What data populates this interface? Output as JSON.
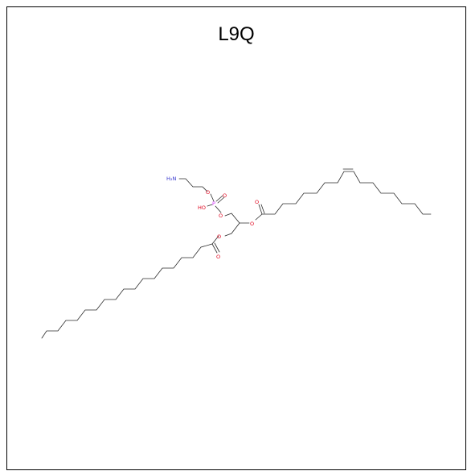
{
  "title": "L9Q",
  "atoms": {
    "amine": "H₂N",
    "phosphorus": "P",
    "hydroxyl": "HO",
    "oxygen": "O"
  },
  "colors": {
    "nitrogen": "#3333cc",
    "oxygen": "#e0001b",
    "phosphorus": "#d633ff",
    "bond": "#2b2b2b"
  }
}
